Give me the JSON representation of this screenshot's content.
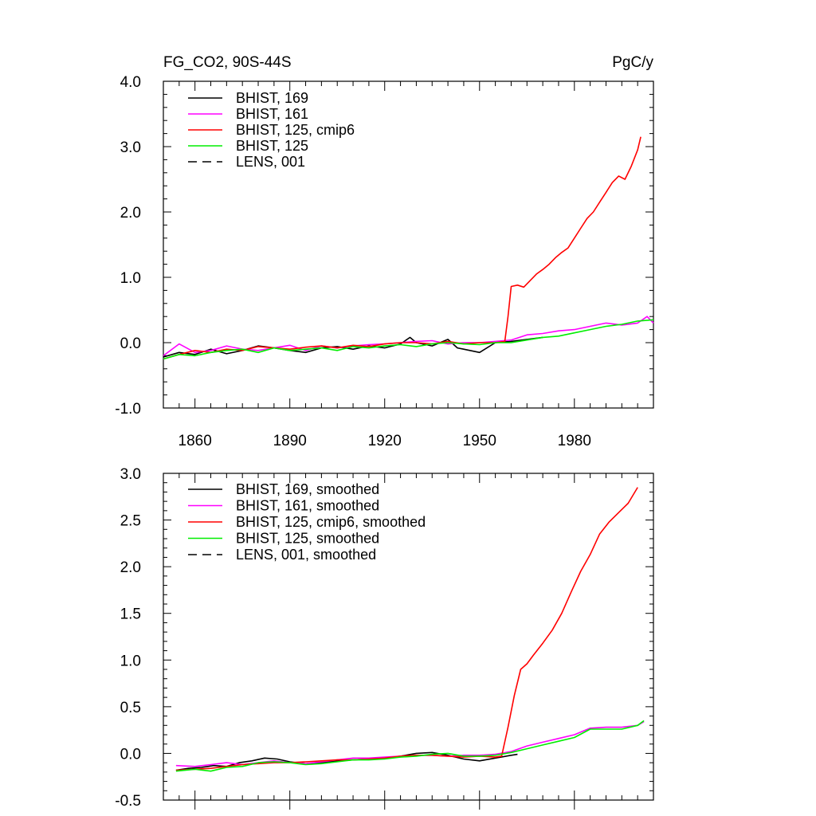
{
  "chart_data": [
    {
      "type": "line",
      "title": "FG_CO2, 90S-44S",
      "units_label": "PgC/y",
      "xlabel": "",
      "ylabel": "",
      "xlim": [
        1850,
        2005
      ],
      "ylim": [
        -1.0,
        4.0
      ],
      "x_tick_labels": [
        "1860",
        "1890",
        "1920",
        "1950",
        "1980"
      ],
      "x_ticks": [
        1860,
        1890,
        1920,
        1950,
        1980
      ],
      "y_tick_labels": [
        "4.0",
        "3.0",
        "2.0",
        "1.0",
        "0.0",
        "-1.0"
      ],
      "y_ticks": [
        4.0,
        3.0,
        2.0,
        1.0,
        0.0,
        -1.0
      ],
      "legend_position": "top-left",
      "grid": false,
      "series": [
        {
          "name": "BHIST, 169",
          "color": "#000000",
          "dash": "solid",
          "x": [
            1850,
            1855,
            1860,
            1865,
            1870,
            1875,
            1880,
            1885,
            1890,
            1895,
            1900,
            1905,
            1910,
            1915,
            1920,
            1925,
            1928,
            1930,
            1935,
            1940,
            1943,
            1945,
            1950,
            1955,
            1960,
            1965,
            1970
          ],
          "y": [
            -0.22,
            -0.15,
            -0.18,
            -0.1,
            -0.17,
            -0.12,
            -0.05,
            -0.08,
            -0.12,
            -0.15,
            -0.08,
            -0.06,
            -0.1,
            -0.05,
            -0.08,
            -0.02,
            0.08,
            0.0,
            -0.05,
            0.05,
            -0.08,
            -0.1,
            -0.15,
            0.0,
            0.02,
            0.05,
            0.08
          ]
        },
        {
          "name": "BHIST, 161",
          "color": "#ff00ff",
          "dash": "solid",
          "x": [
            1850,
            1855,
            1860,
            1865,
            1870,
            1875,
            1880,
            1885,
            1890,
            1895,
            1900,
            1905,
            1910,
            1915,
            1920,
            1925,
            1930,
            1935,
            1940,
            1945,
            1950,
            1955,
            1960,
            1965,
            1970,
            1975,
            1980,
            1985,
            1990,
            1995,
            2000,
            2003,
            2005
          ],
          "y": [
            -0.2,
            -0.02,
            -0.15,
            -0.12,
            -0.05,
            -0.1,
            -0.12,
            -0.08,
            -0.04,
            -0.12,
            -0.05,
            -0.08,
            -0.05,
            -0.03,
            -0.02,
            0.0,
            0.02,
            0.03,
            -0.02,
            0.0,
            0.0,
            0.02,
            0.04,
            0.12,
            0.14,
            0.18,
            0.2,
            0.25,
            0.3,
            0.27,
            0.3,
            0.4,
            0.3
          ]
        },
        {
          "name": "BHIST, 125, cmip6",
          "color": "#ff0000",
          "dash": "solid",
          "x": [
            1850,
            1855,
            1860,
            1865,
            1870,
            1875,
            1880,
            1885,
            1890,
            1895,
            1900,
            1905,
            1910,
            1915,
            1920,
            1925,
            1930,
            1935,
            1940,
            1945,
            1950,
            1955,
            1958,
            1959,
            1960,
            1962,
            1964,
            1966,
            1968,
            1970,
            1972,
            1974,
            1976,
            1978,
            1980,
            1982,
            1984,
            1986,
            1988,
            1990,
            1992,
            1994,
            1996,
            1998,
            2000,
            2001
          ],
          "y": [
            -0.25,
            -0.18,
            -0.12,
            -0.15,
            -0.1,
            -0.12,
            -0.06,
            -0.08,
            -0.1,
            -0.07,
            -0.05,
            -0.08,
            -0.04,
            -0.06,
            -0.02,
            0.0,
            0.0,
            -0.02,
            0.02,
            -0.02,
            0.0,
            0.0,
            0.02,
            0.4,
            0.86,
            0.88,
            0.85,
            0.95,
            1.05,
            1.12,
            1.2,
            1.3,
            1.38,
            1.45,
            1.6,
            1.75,
            1.9,
            2.0,
            2.15,
            2.3,
            2.45,
            2.55,
            2.5,
            2.7,
            2.95,
            3.15
          ]
        },
        {
          "name": "BHIST, 125",
          "color": "#00ee00",
          "dash": "solid",
          "x": [
            1850,
            1855,
            1860,
            1865,
            1870,
            1875,
            1880,
            1885,
            1890,
            1895,
            1900,
            1905,
            1910,
            1915,
            1920,
            1925,
            1930,
            1935,
            1940,
            1945,
            1950,
            1955,
            1960,
            1965,
            1970,
            1975,
            1980,
            1985,
            1990,
            1995,
            2000,
            2005
          ],
          "y": [
            -0.25,
            -0.18,
            -0.2,
            -0.15,
            -0.12,
            -0.1,
            -0.15,
            -0.08,
            -0.12,
            -0.1,
            -0.08,
            -0.12,
            -0.06,
            -0.08,
            -0.05,
            -0.03,
            -0.06,
            -0.02,
            0.0,
            -0.02,
            -0.03,
            0.0,
            0.0,
            0.04,
            0.08,
            0.1,
            0.15,
            0.2,
            0.25,
            0.28,
            0.33,
            0.35
          ]
        },
        {
          "name": "LENS, 001",
          "color": "#000000",
          "dash": "dashed",
          "x": [],
          "y": []
        }
      ]
    },
    {
      "type": "line",
      "title": "",
      "xlabel": "",
      "ylabel": "",
      "xlim": [
        1850,
        2005
      ],
      "ylim": [
        -0.5,
        3.0
      ],
      "x_ticks": [
        1860,
        1890,
        1920,
        1950,
        1980
      ],
      "y_tick_labels": [
        "3.0",
        "2.5",
        "2.0",
        "1.5",
        "1.0",
        "0.5",
        "0.0",
        "-0.5"
      ],
      "y_ticks": [
        3.0,
        2.5,
        2.0,
        1.5,
        1.0,
        0.5,
        0.0,
        -0.5
      ],
      "legend_position": "top-left",
      "grid": false,
      "series": [
        {
          "name": "BHIST, 169, smoothed",
          "color": "#000000",
          "dash": "solid",
          "x": [
            1854,
            1858,
            1862,
            1866,
            1870,
            1874,
            1878,
            1882,
            1886,
            1890,
            1895,
            1900,
            1905,
            1910,
            1915,
            1920,
            1925,
            1930,
            1935,
            1940,
            1945,
            1950,
            1955,
            1960,
            1962
          ],
          "y": [
            -0.18,
            -0.16,
            -0.15,
            -0.13,
            -0.14,
            -0.1,
            -0.08,
            -0.05,
            -0.06,
            -0.09,
            -0.11,
            -0.1,
            -0.08,
            -0.07,
            -0.06,
            -0.05,
            -0.03,
            0.0,
            0.01,
            -0.02,
            -0.06,
            -0.08,
            -0.05,
            -0.02,
            -0.01
          ]
        },
        {
          "name": "BHIST, 161, smoothed",
          "color": "#ff00ff",
          "dash": "solid",
          "x": [
            1854,
            1860,
            1865,
            1870,
            1875,
            1880,
            1885,
            1890,
            1895,
            1900,
            1905,
            1910,
            1915,
            1920,
            1925,
            1930,
            1935,
            1940,
            1945,
            1950,
            1955,
            1960,
            1965,
            1970,
            1975,
            1980,
            1985,
            1990,
            1995,
            2000,
            2002
          ],
          "y": [
            -0.13,
            -0.14,
            -0.12,
            -0.1,
            -0.12,
            -0.1,
            -0.08,
            -0.1,
            -0.11,
            -0.09,
            -0.07,
            -0.05,
            -0.05,
            -0.04,
            -0.03,
            -0.02,
            -0.02,
            -0.03,
            -0.02,
            -0.02,
            -0.01,
            0.02,
            0.08,
            0.12,
            0.16,
            0.2,
            0.27,
            0.28,
            0.28,
            0.3,
            0.34
          ]
        },
        {
          "name": "BHIST, 125, cmip6, smoothed",
          "color": "#ff0000",
          "dash": "solid",
          "x": [
            1854,
            1860,
            1865,
            1870,
            1875,
            1880,
            1885,
            1890,
            1895,
            1900,
            1905,
            1910,
            1915,
            1920,
            1925,
            1930,
            1935,
            1940,
            1945,
            1950,
            1955,
            1957,
            1959,
            1961,
            1963,
            1965,
            1967,
            1970,
            1973,
            1976,
            1979,
            1982,
            1985,
            1988,
            1991,
            1994,
            1997,
            2000
          ],
          "y": [
            -0.18,
            -0.17,
            -0.16,
            -0.14,
            -0.12,
            -0.11,
            -0.1,
            -0.1,
            -0.09,
            -0.08,
            -0.07,
            -0.07,
            -0.06,
            -0.05,
            -0.03,
            -0.02,
            -0.02,
            -0.03,
            -0.04,
            -0.03,
            -0.04,
            -0.03,
            0.28,
            0.62,
            0.9,
            0.96,
            1.05,
            1.18,
            1.32,
            1.5,
            1.73,
            1.95,
            2.13,
            2.35,
            2.48,
            2.58,
            2.68,
            2.85
          ]
        },
        {
          "name": "BHIST, 125, smoothed",
          "color": "#00ee00",
          "dash": "solid",
          "x": [
            1854,
            1860,
            1865,
            1870,
            1875,
            1880,
            1885,
            1890,
            1895,
            1900,
            1905,
            1910,
            1915,
            1920,
            1925,
            1930,
            1935,
            1940,
            1945,
            1950,
            1955,
            1960,
            1965,
            1970,
            1975,
            1980,
            1985,
            1990,
            1995,
            2000,
            2002
          ],
          "y": [
            -0.19,
            -0.17,
            -0.19,
            -0.15,
            -0.14,
            -0.1,
            -0.09,
            -0.1,
            -0.12,
            -0.11,
            -0.09,
            -0.07,
            -0.07,
            -0.06,
            -0.04,
            -0.03,
            -0.01,
            0.0,
            -0.03,
            -0.03,
            -0.02,
            0.01,
            0.05,
            0.09,
            0.13,
            0.17,
            0.26,
            0.26,
            0.26,
            0.3,
            0.35
          ]
        },
        {
          "name": "LENS, 001, smoothed",
          "color": "#000000",
          "dash": "dashed",
          "x": [],
          "y": []
        }
      ]
    }
  ]
}
